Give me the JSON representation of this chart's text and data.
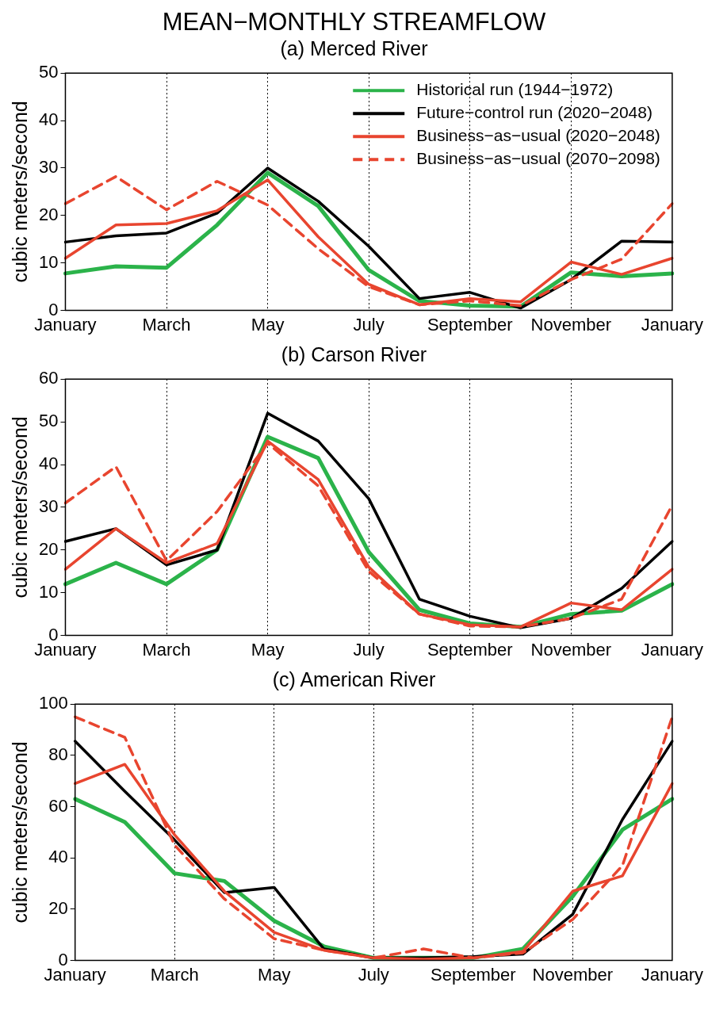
{
  "chart_data": [
    {
      "type": "line",
      "title": "MEAN−MONTHLY STREAMFLOW",
      "subtitle": "(a) Merced River",
      "ylabel": "cubic meters/second",
      "categories": [
        "January",
        null,
        "March",
        null,
        "May",
        null,
        "July",
        null,
        "September",
        null,
        "November",
        null,
        "January"
      ],
      "ylim": [
        0,
        50
      ],
      "yticks": [
        0,
        10,
        20,
        30,
        40,
        50
      ],
      "grid": "x",
      "legend": "top right",
      "marker": "none",
      "series": [
        {
          "name": "Historical run (1944−1972)",
          "color": "#2bb34a",
          "values": [
            7.8,
            9.3,
            9,
            18,
            29,
            22,
            8.5,
            2,
            1,
            0.8,
            8,
            7.2,
            7.8
          ]
        },
        {
          "name": "Future−control run (2020−2048)",
          "color": "#000000",
          "values": [
            14.4,
            15.7,
            16.3,
            20.5,
            30,
            23,
            13.5,
            2.5,
            3.8,
            0.5,
            6.5,
            14.6,
            14.4
          ]
        },
        {
          "name": "Business−as−usual (2020−2048)",
          "color": "#e8452f",
          "values": [
            11,
            18,
            18.3,
            21,
            27.5,
            15.5,
            5.5,
            1.2,
            2.5,
            1.8,
            10.2,
            7.6,
            11
          ]
        },
        {
          "name": "Business−as−usual (2070−2098)",
          "color": "#e8452f",
          "line_style": "dashed",
          "values": [
            22.5,
            28.2,
            21.2,
            27.2,
            22.2,
            13,
            5,
            1.2,
            2,
            1,
            6.5,
            10.8,
            22.5
          ]
        }
      ]
    },
    {
      "type": "line",
      "title": "(b) Carson River",
      "ylabel": "cubic meters/second",
      "categories": [
        "January",
        null,
        "March",
        null,
        "May",
        null,
        "July",
        null,
        "September",
        null,
        "November",
        null,
        "January"
      ],
      "ylim": [
        0,
        60
      ],
      "yticks": [
        0,
        10,
        20,
        30,
        40,
        50,
        60
      ],
      "grid": "x",
      "marker": "none",
      "series": [
        {
          "color": "#2bb34a",
          "values": [
            12,
            17,
            12,
            20,
            46.5,
            41.5,
            19.5,
            6,
            2.8,
            2,
            5,
            5.8,
            12
          ]
        },
        {
          "color": "#000000",
          "values": [
            22,
            25,
            16.5,
            20,
            52,
            45.5,
            32,
            8.5,
            4.5,
            1.8,
            4,
            11,
            22
          ]
        },
        {
          "color": "#e8452f",
          "values": [
            15.5,
            25,
            17,
            21.5,
            45.5,
            36.5,
            16,
            5,
            2.5,
            2,
            7.6,
            6,
            15.5
          ]
        },
        {
          "color": "#e8452f",
          "line_style": "dashed",
          "values": [
            31,
            39.5,
            17.5,
            29,
            45,
            35,
            15,
            5,
            2.2,
            2,
            4,
            8.5,
            30.5
          ]
        }
      ]
    },
    {
      "type": "line",
      "title": "(c) American River",
      "ylabel": "cubic meters/second",
      "categories": [
        "January",
        null,
        "March",
        null,
        "May",
        null,
        "July",
        null,
        "September",
        null,
        "November",
        null,
        "January"
      ],
      "ylim": [
        0,
        100
      ],
      "yticks": [
        0,
        20,
        40,
        60,
        80,
        100
      ],
      "grid": "x",
      "marker": "none",
      "series": [
        {
          "color": "#2bb34a",
          "values": [
            63,
            54,
            34,
            31,
            15.5,
            5.5,
            1,
            1,
            1,
            4.5,
            25,
            51,
            63
          ]
        },
        {
          "color": "#000000",
          "values": [
            85.5,
            66,
            47,
            26.5,
            28.5,
            4.5,
            1,
            1,
            1.5,
            2.5,
            18,
            55,
            85.5
          ]
        },
        {
          "color": "#e8452f",
          "values": [
            69,
            76.5,
            49,
            27,
            11,
            4,
            1,
            0.5,
            1,
            3.5,
            27,
            33,
            69
          ]
        },
        {
          "color": "#e8452f",
          "line_style": "dashed",
          "values": [
            95,
            87,
            45,
            24,
            8.5,
            4,
            1,
            4.5,
            1,
            3,
            16,
            37,
            95
          ]
        }
      ]
    }
  ]
}
